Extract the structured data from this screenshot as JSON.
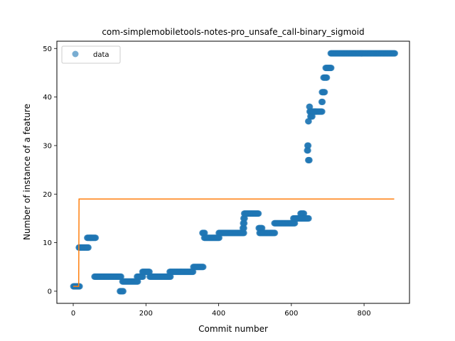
{
  "chart_data": {
    "type": "scatter",
    "title": "com-simplemobiletools-notes-pro_unsafe_call-binary_sigmoid",
    "xlabel": "Commit number",
    "ylabel": "Number of instance of a feature",
    "xlim": [
      -45,
      925
    ],
    "ylim": [
      -2.5,
      51.5
    ],
    "xticks": [
      0,
      200,
      400,
      600,
      800
    ],
    "yticks": [
      0,
      10,
      20,
      30,
      40,
      50
    ],
    "grid": false,
    "legend": {
      "position": "top-left",
      "entries": [
        "data"
      ]
    },
    "colors": {
      "data": "#1f77b4",
      "fit": "#ff7f0e"
    },
    "series": [
      {
        "name": "data",
        "kind": "scatter",
        "segments": [
          {
            "x_start": 0,
            "x_end": 18,
            "y": 1
          },
          {
            "x_start": 15,
            "x_end": 42,
            "y": 9
          },
          {
            "x_start": 38,
            "x_end": 62,
            "y": 11
          },
          {
            "x_start": 58,
            "x_end": 132,
            "y": 3
          },
          {
            "x_start": 128,
            "x_end": 138,
            "y": 0
          },
          {
            "x_start": 135,
            "x_end": 178,
            "y": 2
          },
          {
            "x_start": 175,
            "x_end": 192,
            "y": 3
          },
          {
            "x_start": 190,
            "x_end": 210,
            "y": 4
          },
          {
            "x_start": 210,
            "x_end": 268,
            "y": 3
          },
          {
            "x_start": 265,
            "x_end": 330,
            "y": 4
          },
          {
            "x_start": 330,
            "x_end": 358,
            "y": 5
          },
          {
            "x_start": 355,
            "x_end": 362,
            "y": 12
          },
          {
            "x_start": 360,
            "x_end": 402,
            "y": 11
          },
          {
            "x_start": 400,
            "x_end": 470,
            "y": 12
          },
          {
            "x_start": 466,
            "x_end": 470,
            "y": 13
          },
          {
            "x_start": 467,
            "x_end": 471,
            "y": 14
          },
          {
            "x_start": 468,
            "x_end": 472,
            "y": 15
          },
          {
            "x_start": 470,
            "x_end": 510,
            "y": 16
          },
          {
            "x_start": 510,
            "x_end": 520,
            "y": 13
          },
          {
            "x_start": 512,
            "x_end": 555,
            "y": 12
          },
          {
            "x_start": 553,
            "x_end": 610,
            "y": 14
          },
          {
            "x_start": 605,
            "x_end": 628,
            "y": 15
          },
          {
            "x_start": 625,
            "x_end": 635,
            "y": 16
          },
          {
            "x_start": 628,
            "x_end": 648,
            "y": 15
          },
          {
            "x_start": 643,
            "x_end": 646,
            "y": 29
          },
          {
            "x_start": 644,
            "x_end": 647,
            "y": 30
          },
          {
            "x_start": 646,
            "x_end": 650,
            "y": 27
          },
          {
            "x_start": 646,
            "x_end": 648,
            "y": 35
          },
          {
            "x_start": 649,
            "x_end": 651,
            "y": 38
          },
          {
            "x_start": 650,
            "x_end": 668,
            "y": 37
          },
          {
            "x_start": 652,
            "x_end": 658,
            "y": 36
          },
          {
            "x_start": 660,
            "x_end": 685,
            "y": 37
          },
          {
            "x_start": 683,
            "x_end": 686,
            "y": 39
          },
          {
            "x_start": 684,
            "x_end": 692,
            "y": 41
          },
          {
            "x_start": 688,
            "x_end": 698,
            "y": 44
          },
          {
            "x_start": 694,
            "x_end": 710,
            "y": 46
          },
          {
            "x_start": 708,
            "x_end": 885,
            "y": 49
          }
        ]
      },
      {
        "name": "",
        "kind": "line",
        "points": [
          [
            0,
            1
          ],
          [
            15,
            1
          ],
          [
            16,
            19
          ],
          [
            883,
            19
          ]
        ]
      }
    ]
  }
}
